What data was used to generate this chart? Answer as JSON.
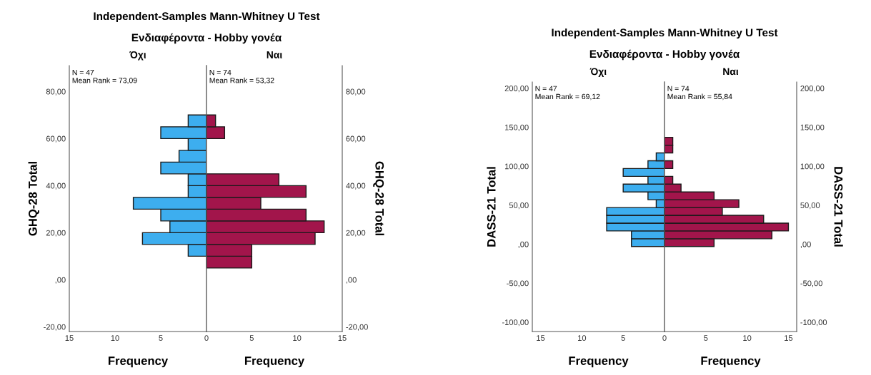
{
  "chart_data": [
    {
      "type": "histogram",
      "orientation": "horizontal",
      "title": "Independent-Samples Mann-Whitney U Test",
      "subtitle": "Ενδιαφέροντα - Hobby γονέα",
      "ylabel": "GHQ-28 Total",
      "xlabel": "Frequency",
      "bins": [
        5,
        10,
        15,
        20,
        25,
        30,
        35,
        40,
        45,
        50,
        55,
        60,
        65,
        70
      ],
      "series": [
        {
          "name": "Όχι",
          "color": "#3daeef",
          "values": [
            null,
            2,
            7,
            4,
            5,
            8,
            2,
            2,
            5,
            3,
            2,
            5,
            2
          ]
        }
      ],
      "xlim": [
        15,
        0
      ],
      "xticks": [
        15,
        10,
        5
      ],
      "ylim": [
        -22,
        91
      ],
      "yticks": [
        {
          "value": -20,
          "label": "-20,00"
        },
        {
          "value": 0,
          "label": ",00"
        },
        {
          "value": 20,
          "label": "20,00"
        },
        {
          "value": 40,
          "label": "40,00"
        },
        {
          "value": 60,
          "label": "60,00"
        },
        {
          "value": 80,
          "label": "80,00"
        }
      ],
      "annotations": [
        "N = 47\nMean Rank = 73,09"
      ],
      "legend": false,
      "grid": false
    },
    {
      "type": "histogram",
      "orientation": "horizontal",
      "ylabel": "GHQ-28 Total",
      "xlabel": "Frequency",
      "bins": [
        5,
        10,
        15,
        20,
        25,
        30,
        35,
        40,
        45,
        50,
        55,
        60,
        65,
        70
      ],
      "series": [
        {
          "name": "Ναι",
          "color": "#a2154b",
          "values": [
            5,
            5,
            12,
            13,
            11,
            6,
            11,
            8,
            null,
            null,
            null,
            2,
            1
          ]
        }
      ],
      "xlim": [
        0,
        15
      ],
      "xticks": [
        0,
        5,
        10,
        15
      ],
      "ylim": [
        -22,
        91
      ],
      "yticks": [
        {
          "value": -20,
          "label": "-20,00"
        },
        {
          "value": 0,
          "label": ",00"
        },
        {
          "value": 20,
          "label": "20,00"
        },
        {
          "value": 40,
          "label": "40,00"
        },
        {
          "value": 60,
          "label": "60,00"
        },
        {
          "value": 80,
          "label": "80,00"
        }
      ],
      "annotations": [
        "N = 74\nMean Rank = 53,32"
      ],
      "legend": false,
      "grid": false
    },
    {
      "type": "histogram",
      "orientation": "horizontal",
      "title": "Independent-Samples Mann-Whitney U Test",
      "subtitle": "Ενδιαφέροντα - Hobby γονέα",
      "ylabel": "DASS-21 Total",
      "xlabel": "Frequency",
      "bins": [
        -3,
        7,
        17,
        27,
        37,
        47,
        57,
        67,
        77,
        87,
        97,
        107,
        117,
        127,
        137
      ],
      "series": [
        {
          "name": "Όχι",
          "color": "#3daeef",
          "values": [
            4,
            4,
            7,
            7,
            7,
            1,
            2,
            5,
            2,
            5,
            2,
            1,
            null,
            null
          ]
        }
      ],
      "xlim": [
        16,
        0
      ],
      "xticks": [
        15,
        10,
        5
      ],
      "ylim": [
        -112,
        208
      ],
      "yticks": [
        {
          "value": -100,
          "label": "-100,00"
        },
        {
          "value": -50,
          "label": "-50,00"
        },
        {
          "value": 0,
          "label": ",00"
        },
        {
          "value": 50,
          "label": "50,00"
        },
        {
          "value": 100,
          "label": "100,00"
        },
        {
          "value": 150,
          "label": "150,00"
        },
        {
          "value": 200,
          "label": "200,00"
        }
      ],
      "annotations": [
        "N = 47\nMean Rank = 69,12"
      ],
      "legend": false,
      "grid": false
    },
    {
      "type": "histogram",
      "orientation": "horizontal",
      "ylabel": "DASS-21 Total",
      "xlabel": "Frequency",
      "bins": [
        -3,
        7,
        17,
        27,
        37,
        47,
        57,
        67,
        77,
        87,
        97,
        107,
        117,
        127,
        137
      ],
      "series": [
        {
          "name": "Ναι",
          "color": "#a2154b",
          "values": [
            6,
            13,
            15,
            12,
            7,
            9,
            6,
            2,
            1,
            null,
            1,
            null,
            1,
            1
          ]
        }
      ],
      "xlim": [
        0,
        16
      ],
      "xticks": [
        0,
        5,
        10,
        15
      ],
      "ylim": [
        -112,
        208
      ],
      "yticks": [
        {
          "value": -100,
          "label": "-100,00"
        },
        {
          "value": -50,
          "label": "-50,00"
        },
        {
          "value": 0,
          "label": ",00"
        },
        {
          "value": 50,
          "label": "50,00"
        },
        {
          "value": 100,
          "label": "100,00"
        },
        {
          "value": 150,
          "label": "150,00"
        },
        {
          "value": 200,
          "label": "200,00"
        }
      ],
      "annotations": [
        "N = 74\nMean Rank = 55,84"
      ],
      "legend": false,
      "grid": false
    }
  ]
}
